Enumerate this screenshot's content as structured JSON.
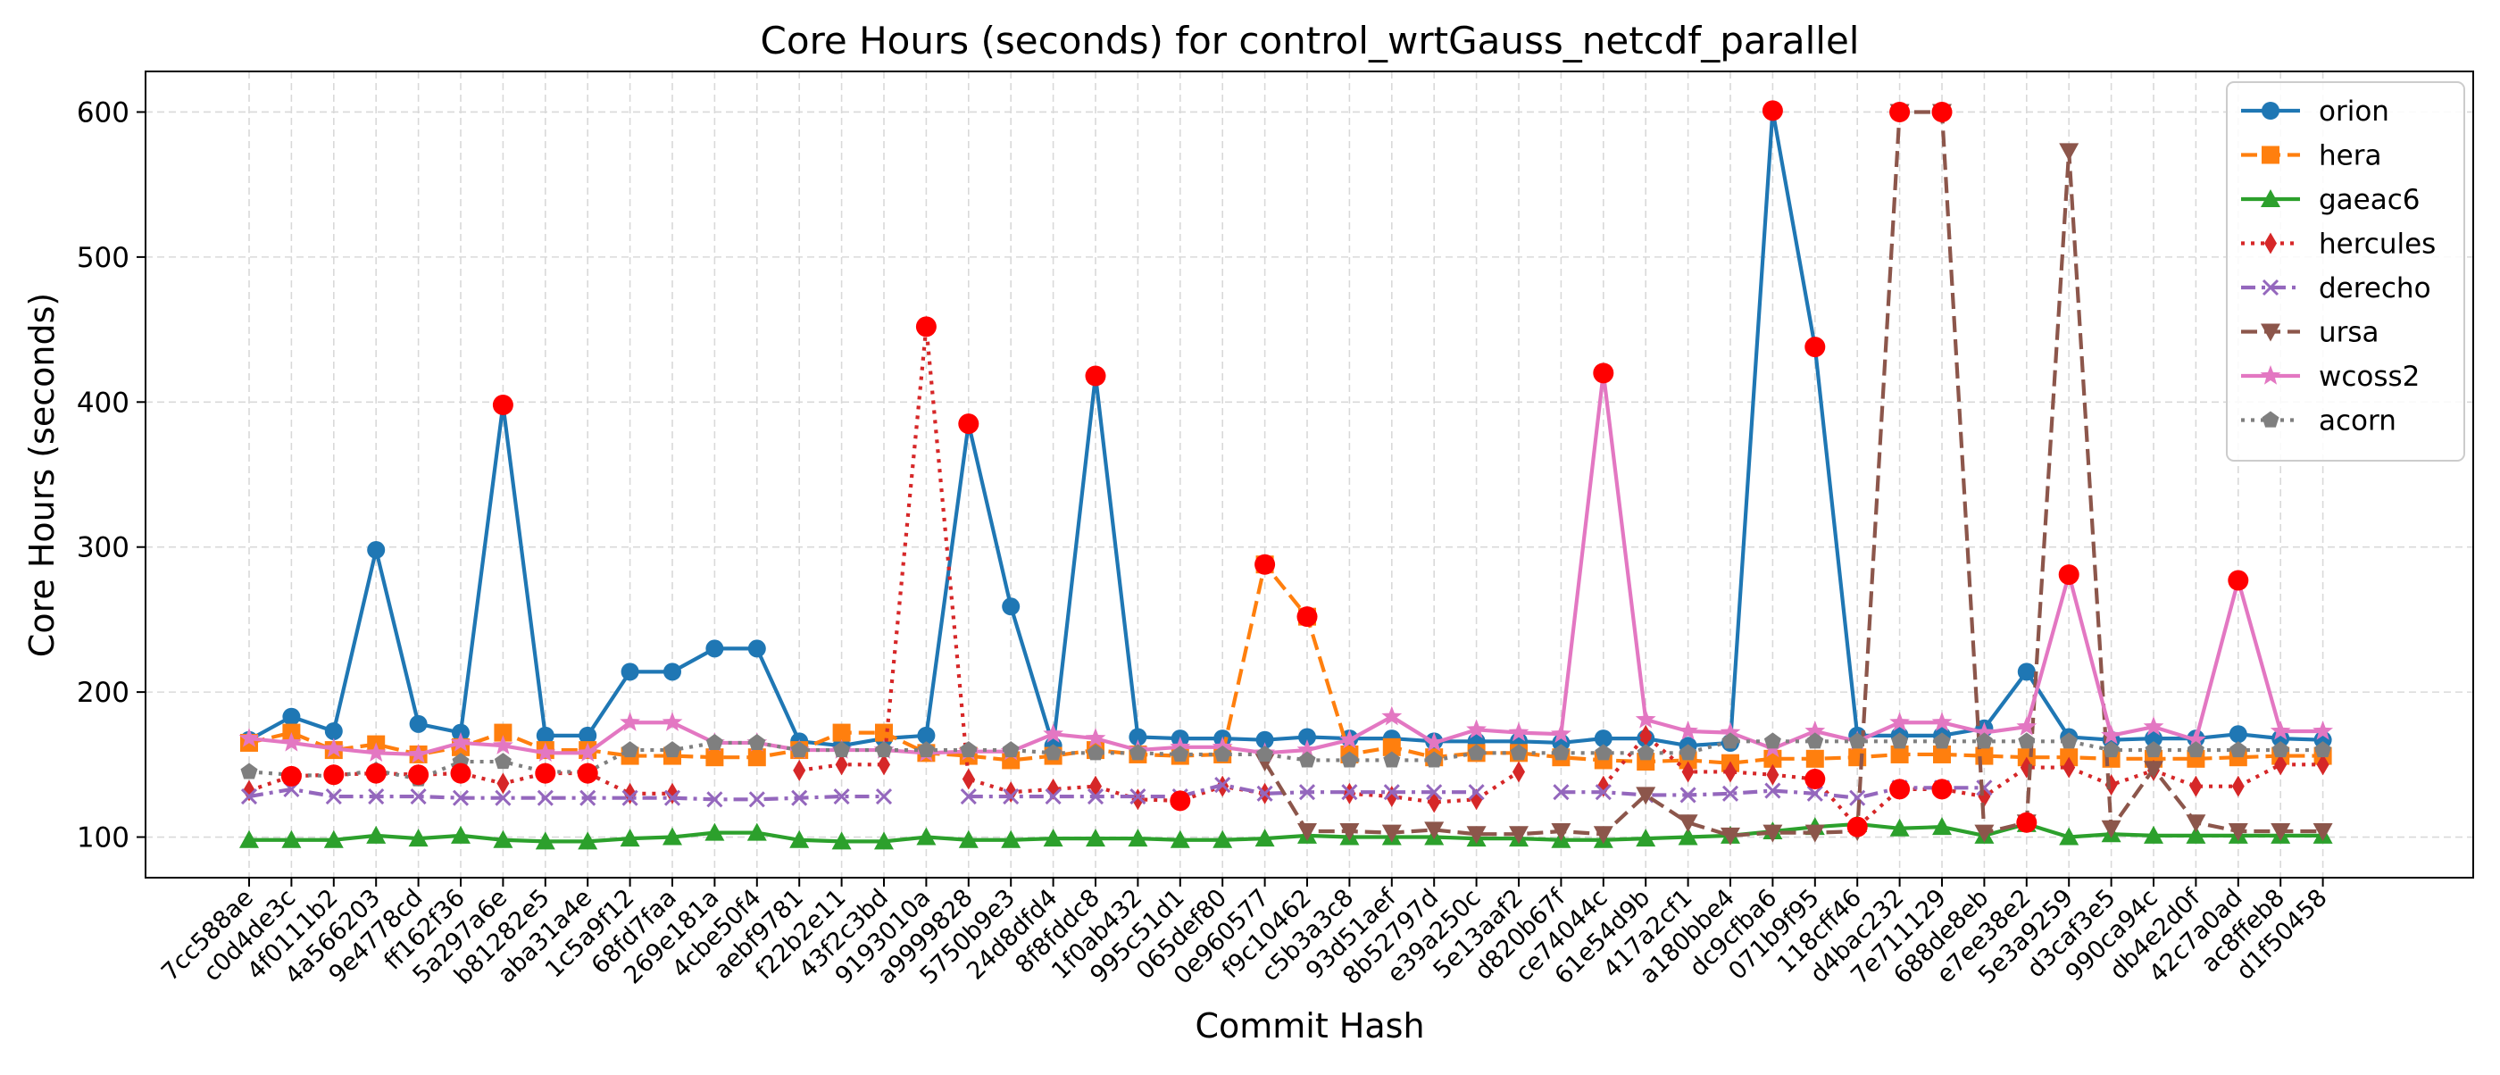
{
  "chart_data": {
    "type": "line",
    "title": "Core Hours (seconds) for control_wrtGauss_netcdf_parallel",
    "xlabel": "Commit Hash",
    "ylabel": "Core Hours (seconds)",
    "ylim": [
      72,
      628
    ],
    "yticks": [
      100,
      200,
      300,
      400,
      500,
      600
    ],
    "grid": true,
    "legend_position": "top-right",
    "outlier_marker_color": "#ff0000",
    "categories": [
      "7cc588ae",
      "c0d4de3c",
      "4f0111b2",
      "4a566203",
      "9e4778cd",
      "ff162f36",
      "5a297a6e",
      "b81282e5",
      "aba31a4e",
      "1c5a9f12",
      "68fd7faa",
      "269e181a",
      "4cbe50f4",
      "aebf9781",
      "f22b2e11",
      "43f2c3bd",
      "9193010a",
      "a9999828",
      "5750b9e3",
      "24d8dfd4",
      "8f8fddc8",
      "1f0ab432",
      "995c51d1",
      "065def80",
      "0e960577",
      "f9c10462",
      "c5b3a3c8",
      "93d51aef",
      "8b52797d",
      "e39a250c",
      "5e13aaf2",
      "d820b67f",
      "ce74044c",
      "61e54d9b",
      "417a2cf1",
      "a180bbe4",
      "dc9cfba6",
      "071b9f95",
      "118cff46",
      "d4bac232",
      "7e711129",
      "688de8eb",
      "e7ee38e2",
      "5e3a9259",
      "d3caf3e5",
      "990ca94c",
      "db4e2d0f",
      "42c7a0ad",
      "ac8ffeb8",
      "d1f50458"
    ],
    "series": [
      {
        "name": "orion",
        "color": "#1f77b4",
        "marker": "circle",
        "dash": "solid",
        "values": [
          167,
          183,
          173,
          298,
          178,
          172,
          398,
          170,
          170,
          214,
          214,
          230,
          230,
          166,
          163,
          168,
          170,
          385,
          259,
          163,
          418,
          169,
          168,
          168,
          167,
          169,
          168,
          168,
          166,
          166,
          166,
          165,
          168,
          168,
          163,
          165,
          601,
          438,
          170,
          170,
          170,
          175,
          214,
          169,
          167,
          168,
          168,
          171,
          168,
          167
        ],
        "outliers": [
          6,
          17,
          20,
          36,
          37
        ]
      },
      {
        "name": "hera",
        "color": "#ff7f0e",
        "marker": "square",
        "dash": "dashed",
        "values": [
          165,
          172,
          160,
          164,
          157,
          162,
          172,
          160,
          160,
          156,
          156,
          155,
          155,
          160,
          172,
          172,
          158,
          156,
          153,
          156,
          160,
          157,
          156,
          157,
          288,
          252,
          157,
          162,
          155,
          158,
          158,
          155,
          153,
          152,
          153,
          151,
          154,
          154,
          155,
          157,
          157,
          156,
          155,
          155,
          154,
          154,
          154,
          155,
          156,
          156
        ],
        "outliers": [
          24,
          25
        ]
      },
      {
        "name": "gaeac6",
        "color": "#2ca02c",
        "marker": "triangle-up",
        "dash": "solid",
        "values": [
          98,
          98,
          98,
          101,
          99,
          101,
          98,
          97,
          97,
          99,
          100,
          103,
          103,
          98,
          97,
          97,
          100,
          98,
          98,
          99,
          99,
          99,
          98,
          98,
          99,
          101,
          100,
          100,
          100,
          99,
          99,
          98,
          98,
          99,
          100,
          101,
          104,
          107,
          109,
          106,
          107,
          101,
          109,
          100,
          102,
          101,
          101,
          101,
          101,
          101
        ],
        "outliers": []
      },
      {
        "name": "hercules",
        "color": "#d62728",
        "marker": "diamond-thin",
        "dash": "dotted",
        "values": [
          132,
          142,
          143,
          144,
          143,
          144,
          137,
          144,
          144,
          130,
          130,
          null,
          null,
          146,
          150,
          150,
          452,
          140,
          131,
          133,
          135,
          126,
          125,
          135,
          130,
          null,
          130,
          128,
          124,
          126,
          145,
          null,
          135,
          170,
          145,
          145,
          143,
          140,
          107,
          133,
          133,
          128,
          148,
          148,
          136,
          146,
          135,
          135,
          150,
          150
        ],
        "outliers": [
          1,
          2,
          3,
          4,
          5,
          7,
          8,
          16,
          22,
          31,
          37,
          38,
          39,
          40
        ]
      },
      {
        "name": "derecho",
        "color": "#9467bd",
        "marker": "x",
        "dash": "dashdot",
        "values": [
          128,
          133,
          128,
          128,
          128,
          127,
          127,
          127,
          127,
          127,
          127,
          126,
          126,
          127,
          128,
          128,
          null,
          128,
          128,
          128,
          128,
          128,
          128,
          136,
          130,
          131,
          131,
          131,
          131,
          131,
          null,
          131,
          131,
          129,
          129,
          130,
          132,
          130,
          127,
          134,
          134,
          134,
          null,
          null,
          null,
          null,
          null,
          null,
          null,
          null
        ],
        "outliers": []
      },
      {
        "name": "ursa",
        "color": "#8c564b",
        "marker": "triangle-down",
        "dash": "dashed",
        "values": [
          null,
          null,
          null,
          null,
          null,
          null,
          null,
          null,
          null,
          null,
          null,
          null,
          null,
          null,
          null,
          null,
          null,
          null,
          null,
          null,
          null,
          null,
          null,
          null,
          152,
          104,
          104,
          103,
          105,
          102,
          102,
          104,
          102,
          129,
          110,
          101,
          103,
          103,
          104,
          600,
          600,
          103,
          110,
          573,
          106,
          147,
          110,
          104,
          104,
          104
        ],
        "outliers": [
          39,
          40,
          42
        ]
      },
      {
        "name": "wcoss2",
        "color": "#e377c2",
        "marker": "star",
        "dash": "solid",
        "values": [
          168,
          165,
          161,
          158,
          157,
          165,
          163,
          158,
          158,
          179,
          179,
          165,
          165,
          160,
          160,
          160,
          158,
          159,
          159,
          171,
          168,
          160,
          162,
          162,
          158,
          160,
          167,
          183,
          165,
          174,
          172,
          171,
          420,
          181,
          173,
          172,
          161,
          173,
          166,
          179,
          179,
          172,
          176,
          281,
          170,
          176,
          167,
          277,
          173,
          173
        ],
        "outliers": [
          32,
          43,
          47
        ]
      },
      {
        "name": "acorn",
        "color": "#7f7f7f",
        "marker": "pentagon",
        "dash": "dotted",
        "values": [
          145,
          143,
          142,
          146,
          140,
          152,
          152,
          145,
          145,
          160,
          160,
          165,
          165,
          160,
          160,
          160,
          160,
          160,
          160,
          158,
          158,
          158,
          157,
          157,
          157,
          153,
          153,
          153,
          153,
          158,
          158,
          158,
          158,
          158,
          158,
          166,
          166,
          166,
          166,
          166,
          166,
          166,
          166,
          166,
          160,
          160,
          160,
          160,
          160,
          160
        ],
        "outliers": []
      }
    ]
  }
}
